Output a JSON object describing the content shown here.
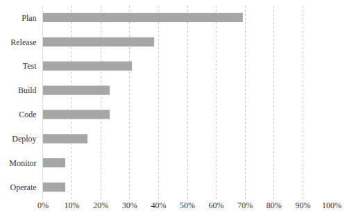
{
  "chart_data": {
    "type": "bar",
    "orientation": "horizontal",
    "categories": [
      "Plan",
      "Release",
      "Test",
      "Build",
      "Code",
      "Deploy",
      "Monitor",
      "Operate"
    ],
    "values": [
      69.2,
      38.5,
      30.8,
      23.1,
      23.1,
      15.4,
      7.7,
      7.7
    ],
    "color": "#a6a6a6",
    "xlim": [
      0,
      100
    ],
    "xticks": [
      {
        "value": 0,
        "label": "0%"
      },
      {
        "value": 10,
        "label": "10%"
      },
      {
        "value": 20,
        "label": "20%"
      },
      {
        "value": 30,
        "label": "30%"
      },
      {
        "value": 40,
        "label": "40%"
      },
      {
        "value": 50,
        "label": "50%"
      },
      {
        "value": 60,
        "label": "60%"
      },
      {
        "value": 70,
        "label": "70%"
      },
      {
        "value": 80,
        "label": "80%"
      },
      {
        "value": 90,
        "label": "90%"
      },
      {
        "value": 100,
        "label": "100%"
      }
    ],
    "grid": true
  }
}
